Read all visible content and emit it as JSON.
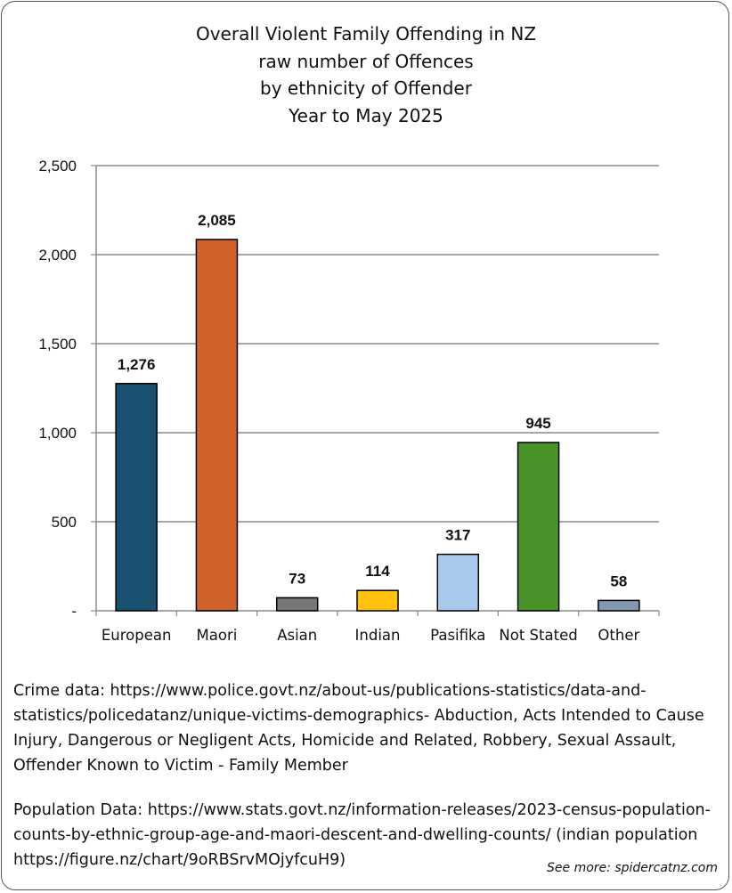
{
  "chart_data": {
    "type": "bar",
    "title_lines": [
      "Overall Violent Family Offending in NZ",
      "raw number of Offences",
      "by ethnicity of Offender",
      "Year to May 2025"
    ],
    "categories": [
      "European",
      "Maori",
      "Asian",
      "Indian",
      "Pasifika",
      "Not Stated",
      "Other"
    ],
    "values": [
      1276,
      2085,
      73,
      114,
      317,
      945,
      58
    ],
    "data_labels": [
      "1,276",
      "2,085",
      "73",
      "114",
      "317",
      "945",
      "58"
    ],
    "colors": [
      "#1a5070",
      "#d0622c",
      "#777777",
      "#ffc20e",
      "#a6c9ec",
      "#4a932b",
      "#8497b0"
    ],
    "ylim": [
      0,
      2500
    ],
    "yticks": [
      0,
      500,
      1000,
      1500,
      2000,
      2500
    ],
    "ytick_labels": [
      "-",
      "500",
      "1,000",
      "1,500",
      "2,000",
      "2,500"
    ],
    "xlabel": "",
    "ylabel": "",
    "grid": true,
    "legend": "none"
  },
  "notes": {
    "crime": "Crime data: https://www.police.govt.nz/about-us/publications-statistics/data-and-statistics/policedatanz/unique-victims-demographics-  Abduction, Acts Intended to Cause Injury, Dangerous or Negligent Acts, Homicide and Related, Robbery, Sexual Assault, Offender Known to Victim - Family Member",
    "population": "Population Data: https://www.stats.govt.nz/information-releases/2023-census-population-counts-by-ethnic-group-age-and-maori-descent-and-dwelling-counts/ (indian population https://figure.nz/chart/9oRBSrvMOjyfcuH9)"
  },
  "credit": "See more: spidercatnz.com"
}
